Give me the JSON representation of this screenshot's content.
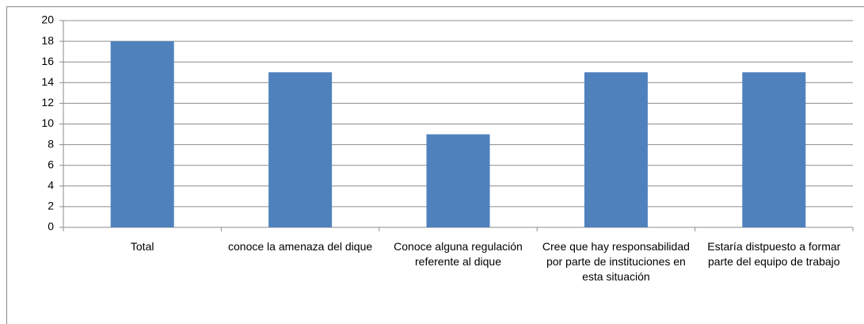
{
  "chart_data": {
    "type": "bar",
    "categories": [
      "Total",
      "conoce la amenaza del dique",
      "Conoce alguna regulación referente al dique",
      "Cree que hay responsabilidad por parte de instituciones en esta situación",
      "Estaría distpuesto a formar parte del equipo de trabajo"
    ],
    "values": [
      18,
      15,
      9,
      15,
      15
    ],
    "color": "#4f81bd",
    "ylim": [
      0,
      20
    ],
    "yticks": [
      0,
      2,
      4,
      6,
      8,
      10,
      12,
      14,
      16,
      18,
      20
    ],
    "grid": true
  }
}
